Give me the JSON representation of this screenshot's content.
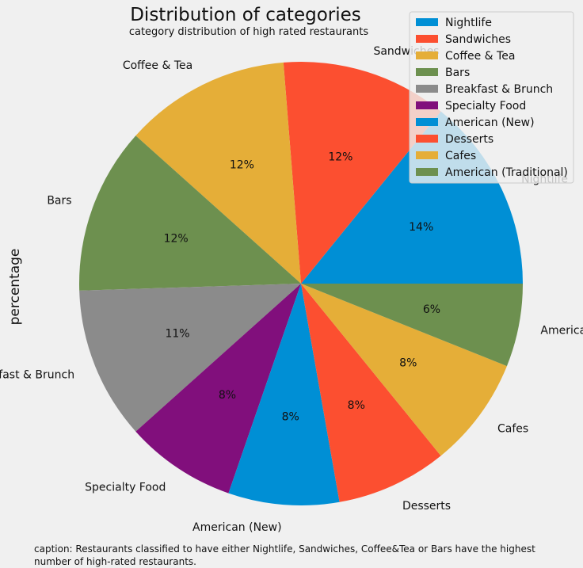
{
  "chart_data": {
    "type": "pie",
    "title": "Distribution of categories",
    "subtitle": "category distribution of high rated restaurants",
    "ylabel": "percentage",
    "categories": [
      "Nightlife",
      "Sandwiches",
      "Coffee & Tea",
      "Bars",
      "Breakfast & Brunch",
      "Specialty Food",
      "American (New)",
      "Desserts",
      "Cafes",
      "American (Traditional)"
    ],
    "values": [
      14,
      12,
      12,
      12,
      11,
      8,
      8,
      8,
      8,
      6
    ],
    "percent_labels": [
      "14%",
      "12%",
      "12%",
      "12%",
      "11%",
      "8%",
      "8%",
      "8%",
      "8%",
      "6%"
    ],
    "colors": [
      "#008fd5",
      "#fc4f30",
      "#e5ae38",
      "#6d904f",
      "#8b8b8b",
      "#810f7c",
      "#008fd5",
      "#fc4f30",
      "#e5ae38",
      "#6d904f"
    ],
    "legend": [
      "Nightlife",
      "Sandwiches",
      "Coffee & Tea",
      "Bars",
      "Breakfast & Brunch",
      "Specialty Food",
      "American (New)",
      "Desserts",
      "Cafes",
      "American (Traditional)"
    ],
    "legend_position": "top-right",
    "start_angle_deg": 0,
    "direction": "counterclockwise",
    "background_color": "#f0f0f0"
  },
  "caption": "caption: Restaurants classified to have either Nightlife, Sandwiches, Coffee&Tea or Bars have the highest number of high-rated restaurants."
}
